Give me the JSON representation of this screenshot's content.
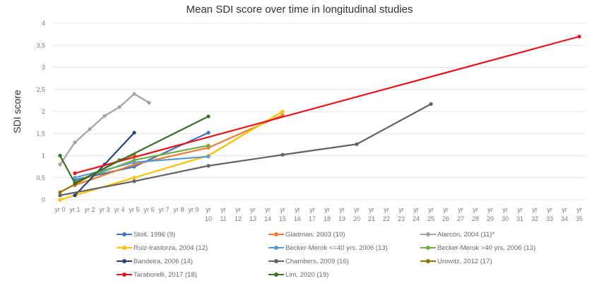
{
  "chart_data": {
    "type": "line",
    "title": "Mean SDI score over time in longitudinal studies",
    "xlabel": "",
    "ylabel": "SDI score",
    "ylim": [
      0,
      4
    ],
    "yticks": [
      "0",
      "0,5",
      "1",
      "1,5",
      "2",
      "2,5",
      "3",
      "3,5",
      "4"
    ],
    "ytick_values": [
      0,
      0.5,
      1,
      1.5,
      2,
      2.5,
      3,
      3.5,
      4
    ],
    "grid": true,
    "legend_position": "bottom",
    "categories": [
      "yr 0",
      "yr 1",
      "yr 2",
      "yr 3",
      "yr 4",
      "yr 5",
      "yr 6",
      "yr 7",
      "yr 8",
      "yr 9",
      "yr 10",
      "yr 11",
      "yr 12",
      "yr 13",
      "yr 14",
      "yr 15",
      "yr 16",
      "yr 17",
      "yr 18",
      "yr 19",
      "yr 20",
      "yr 21",
      "yr 22",
      "yr 23",
      "yr 24",
      "yr 25",
      "yr 26",
      "yr 27",
      "yr 28",
      "yr 29",
      "yr 30",
      "yr 31",
      "yr 32",
      "yr 33",
      "yr 34",
      "yr 35"
    ],
    "series": [
      {
        "name": "Stoll, 1996 (9)",
        "color": "#4472C4",
        "x": [
          1,
          5,
          10
        ],
        "values": [
          0.45,
          0.75,
          1.52
        ]
      },
      {
        "name": "Gladman, 2003 (10)",
        "color": "#ED7D31",
        "x": [
          1,
          5,
          10,
          15
        ],
        "values": [
          0.33,
          0.8,
          1.18,
          1.92
        ]
      },
      {
        "name": "Alarcón, 2004 (11)*",
        "color": "#A5A5A5",
        "x": [
          0,
          1,
          2,
          3,
          4,
          5,
          6
        ],
        "values": [
          0.8,
          1.3,
          1.6,
          1.9,
          2.1,
          2.4,
          2.2
        ]
      },
      {
        "name": "Ruiz-Irastorza, 2004 (12)",
        "color": "#FFC000",
        "x": [
          0,
          5,
          10,
          15
        ],
        "values": [
          0.0,
          0.5,
          1.0,
          2.0
        ]
      },
      {
        "name": "Becker-Merok <=40 yrs, 2006 (13)",
        "color": "#5B9BD5",
        "x": [
          1,
          5,
          10
        ],
        "values": [
          0.5,
          0.85,
          0.98
        ]
      },
      {
        "name": "Becker-Merok >40 yrs, 2006 (13)",
        "color": "#70AD47",
        "x": [
          1,
          5,
          10
        ],
        "values": [
          0.4,
          0.9,
          1.23
        ]
      },
      {
        "name": "Bandeira, 2006 (14)",
        "color": "#264478",
        "x": [
          1,
          3,
          5
        ],
        "values": [
          0.1,
          0.8,
          1.52
        ]
      },
      {
        "name": "Chambers, 2009 (16)",
        "color": "#636363",
        "x": [
          0,
          5,
          10,
          15,
          20,
          25
        ],
        "values": [
          0.1,
          0.42,
          0.77,
          1.02,
          1.26,
          2.17
        ]
      },
      {
        "name": "Urowitz, 2012 (17)",
        "color": "#997300",
        "x": [
          0,
          1,
          4,
          5
        ],
        "values": [
          0.17,
          0.35,
          0.9,
          1.02
        ]
      },
      {
        "name": "Taraborelli, 2017 (18)",
        "color": "#E8141B",
        "x": [
          1,
          35
        ],
        "values": [
          0.6,
          3.7
        ]
      },
      {
        "name": "Lim, 2020 (19)",
        "color": "#3A7125",
        "x": [
          0,
          1,
          10
        ],
        "values": [
          1.0,
          0.38,
          1.89
        ]
      }
    ]
  }
}
